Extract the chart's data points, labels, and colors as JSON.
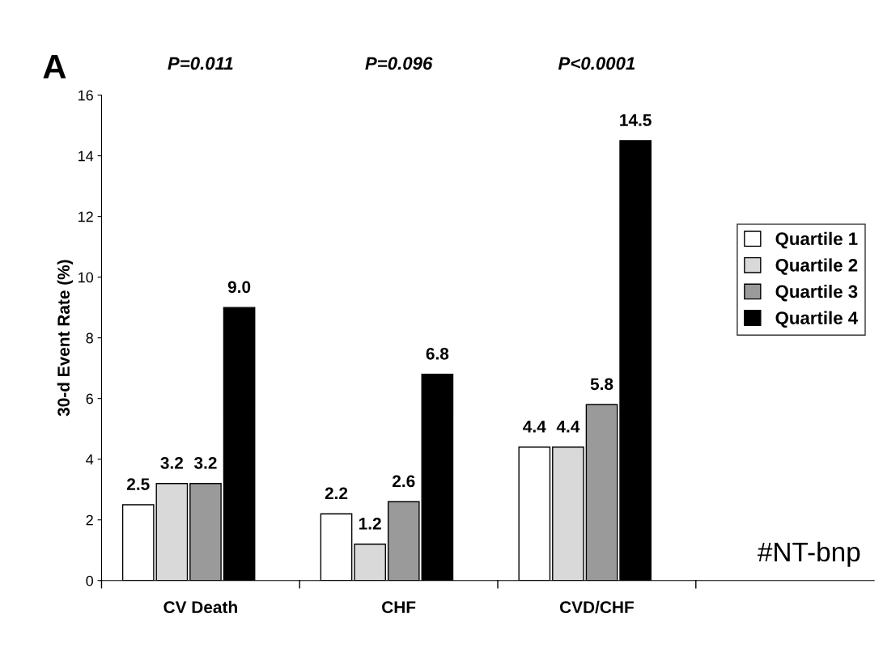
{
  "chart_data": {
    "type": "bar",
    "ylabel": "30-d Event Rate (%)",
    "categories": [
      "CV Death",
      "CHF",
      "CVD/CHF"
    ],
    "series": [
      {
        "name": "Quartile 1",
        "color": "#ffffff",
        "values": [
          2.5,
          2.2,
          4.4
        ],
        "value_labels": [
          "2.5",
          "2.2",
          "4.4"
        ]
      },
      {
        "name": "Quartile 2",
        "color": "#d9d9d9",
        "values": [
          3.2,
          1.2,
          4.4
        ],
        "value_labels": [
          "3.2",
          "1.2",
          "4.4"
        ]
      },
      {
        "name": "Quartile 3",
        "color": "#9a9a9a",
        "values": [
          3.2,
          2.6,
          5.8
        ],
        "value_labels": [
          "3.2",
          "2.6",
          "5.8"
        ]
      },
      {
        "name": "Quartile 4",
        "color": "#000000",
        "values": [
          9.0,
          6.8,
          14.5
        ],
        "value_labels": [
          "9.0",
          "6.8",
          "14.5"
        ]
      }
    ],
    "ylim": [
      0,
      16
    ],
    "yticks": [
      0,
      2,
      4,
      6,
      8,
      10,
      12,
      14,
      16
    ],
    "grid": false,
    "legend": "right",
    "annotations": [
      "A",
      "P=0.011",
      "P=0.096",
      "P<0.0001",
      "#NT-bnp"
    ]
  }
}
